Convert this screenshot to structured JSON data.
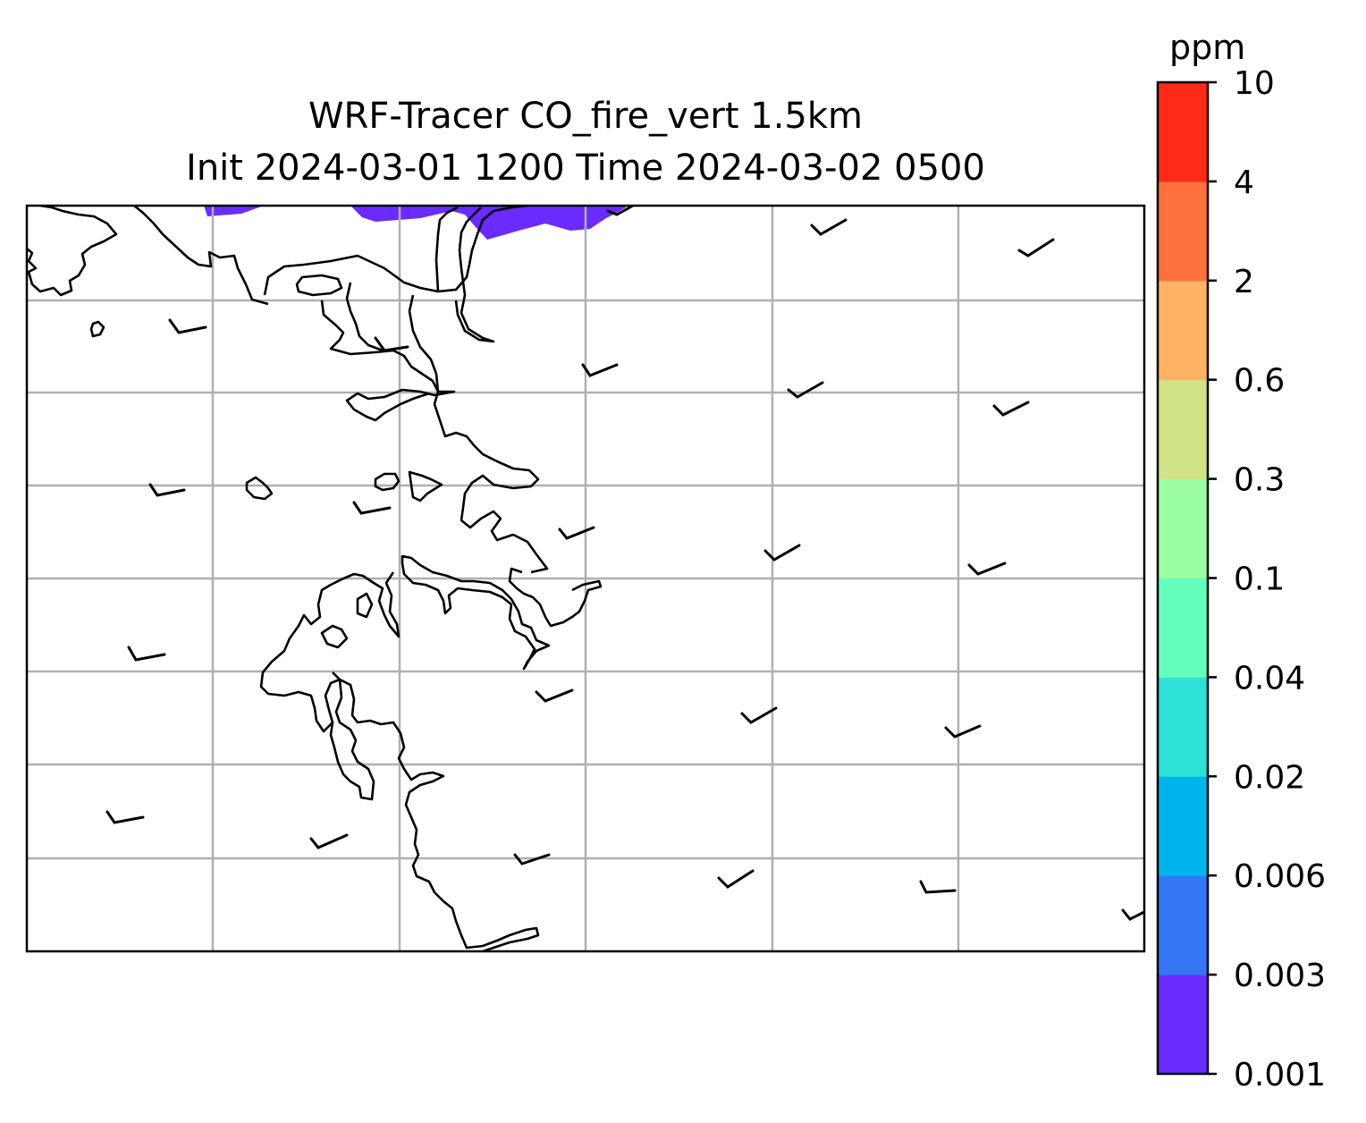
{
  "title": {
    "line1": "WRF-Tracer CO_fire_vert 1.5km",
    "line2": "Init 2024-03-01 1200 Time 2024-03-02 0500"
  },
  "colorbar": {
    "unit": "ppm",
    "levels": [
      "0.001",
      "0.003",
      "0.006",
      "0.02",
      "0.04",
      "0.1",
      "0.3",
      "0.6",
      "2",
      "4",
      "10"
    ],
    "colors": [
      "#6a2bff",
      "#3476f3",
      "#00b4ec",
      "#2ee1d6",
      "#64fdbc",
      "#9cfea2",
      "#d1e388",
      "#feb264",
      "#ff703f",
      "#ff2a18"
    ]
  },
  "map": {
    "gridlines": true,
    "coastline_color": "#000000",
    "gridline_color": "#b0b0b0",
    "wind_barbs": true
  }
}
